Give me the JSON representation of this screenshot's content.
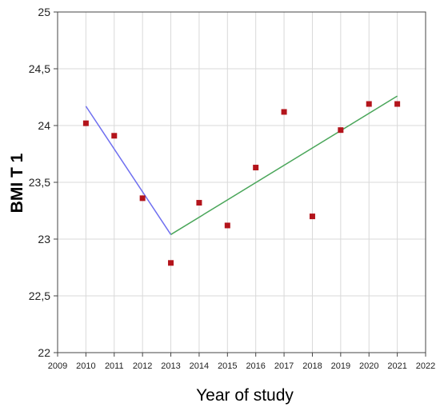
{
  "chart_data": {
    "type": "scatter",
    "title": "",
    "xlabel": "Year of study",
    "ylabel": "BMI T 1",
    "xlim": [
      2009,
      2022
    ],
    "ylim": [
      22,
      25
    ],
    "grid": true,
    "x_ticks": [
      {
        "value": 2009,
        "label": "2009"
      },
      {
        "value": 2010,
        "label": "2010"
      },
      {
        "value": 2011,
        "label": "2011"
      },
      {
        "value": 2012,
        "label": "2012"
      },
      {
        "value": 2013,
        "label": "2013"
      },
      {
        "value": 2014,
        "label": "2014"
      },
      {
        "value": 2015,
        "label": "2015"
      },
      {
        "value": 2016,
        "label": "2016"
      },
      {
        "value": 2017,
        "label": "2017"
      },
      {
        "value": 2018,
        "label": "2018"
      },
      {
        "value": 2019,
        "label": "2019"
      },
      {
        "value": 2020,
        "label": "2020"
      },
      {
        "value": 2021,
        "label": "2021"
      },
      {
        "value": 2022,
        "label": "2022"
      }
    ],
    "y_ticks": [
      {
        "value": 22,
        "label": "22"
      },
      {
        "value": 22.5,
        "label": "22,5"
      },
      {
        "value": 23,
        "label": "23"
      },
      {
        "value": 23.5,
        "label": "23,5"
      },
      {
        "value": 24,
        "label": "24"
      },
      {
        "value": 24.5,
        "label": "24,5"
      },
      {
        "value": 25,
        "label": "25"
      }
    ],
    "points": {
      "color": "#b3141b",
      "x": [
        2010,
        2011,
        2012,
        2013,
        2014,
        2015,
        2016,
        2017,
        2018,
        2019,
        2020,
        2021
      ],
      "y": [
        24.02,
        23.91,
        23.36,
        22.79,
        23.32,
        23.12,
        23.63,
        24.12,
        23.2,
        23.96,
        24.19,
        24.19
      ]
    },
    "trend_segments": [
      {
        "color": "#6f6ff0",
        "x": [
          2010,
          2013
        ],
        "y": [
          24.17,
          23.04
        ]
      },
      {
        "color": "#4aa65a",
        "x": [
          2013,
          2021
        ],
        "y": [
          23.04,
          24.26
        ]
      }
    ]
  }
}
